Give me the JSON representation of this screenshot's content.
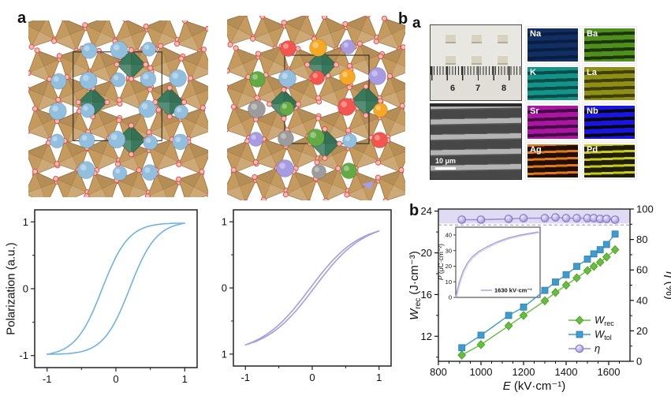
{
  "panel_labels": {
    "left": "a",
    "mid": "b",
    "right": "a",
    "chart": "b"
  },
  "structures": {
    "octahedron_fill": "#c49a5f",
    "octahedron_edge": "#8f6b3c",
    "b_site_fill": "#3a7a5c",
    "b_site_edge": "#295a43",
    "oxygen_fill": "#f5b8b4",
    "oxygen_edge": "#d84b48",
    "host_a_site": "#93bfdf",
    "host_a_edge": "#6d9cc6",
    "dopant_palette": [
      "#93bfdf",
      "#f2564e",
      "#f5a823",
      "#a89be2",
      "#9c9c9c",
      "#63aa45"
    ],
    "unit_cell_edge": "#222222"
  },
  "micrograph": {
    "ruler_numbers": [
      "6",
      "7",
      "8"
    ],
    "sem_scale_label": "10 μm"
  },
  "eds": {
    "tiles": [
      {
        "label": "Na",
        "base": "#112f62",
        "stripe": "#0a1d42",
        "style": "coarse"
      },
      {
        "label": "Ba",
        "base": "#4f8f1d",
        "stripe": "#1c3609",
        "style": "coarse"
      },
      {
        "label": "K",
        "base": "#12948a",
        "stripe": "#0a4d48",
        "style": "coarse"
      },
      {
        "label": "La",
        "base": "#8f8f16",
        "stripe": "#3f3f0a",
        "style": "coarse"
      },
      {
        "label": "Sr",
        "base": "#a816a2",
        "stripe": "#470944",
        "style": "coarse"
      },
      {
        "label": "Nb",
        "base": "#1a16e2",
        "stripe": "#050510",
        "style": "coarse"
      },
      {
        "label": "Ag",
        "base": "#e4791c",
        "stripe": "#200f02",
        "style": "fine"
      },
      {
        "label": "Pd",
        "base": "#c9c91f",
        "stripe": "#1f1f06",
        "style": "fine"
      }
    ]
  },
  "chart_data": [
    {
      "type": "line",
      "id": "pe-loop-normal",
      "description": "normal ferroelectric P-E hysteresis loop",
      "ylabel": "Polarization (a.u.)",
      "xticks": [
        -1,
        0,
        1
      ],
      "yticks": [
        1,
        0,
        -1
      ],
      "xlim": [
        -1,
        1
      ],
      "ylim": [
        -1,
        1
      ],
      "model": "hysteresis",
      "coercive_field": 0.2,
      "steepness": 2.6,
      "p_max": 0.98,
      "color": "#6fb3e3"
    },
    {
      "type": "line",
      "id": "pe-loop-slim",
      "description": "slim relaxor P-E loop",
      "xticks": [
        -1,
        0,
        1
      ],
      "yticks": [
        1,
        0,
        -1
      ],
      "xlim": [
        -1,
        1
      ],
      "ylim": [
        -1,
        1
      ],
      "model": "hysteresis",
      "coercive_field": 0.03,
      "steepness": 1.35,
      "p_max": 0.86,
      "color": "#a79ddd"
    },
    {
      "type": "line",
      "id": "energy-storage-chart",
      "x": [
        910,
        1000,
        1130,
        1200,
        1300,
        1350,
        1400,
        1450,
        1500,
        1530,
        1560,
        1590,
        1630
      ],
      "series": [
        {
          "name": "Wrec",
          "label_italic": "W",
          "label_sub": "rec",
          "marker": "diamond",
          "axis": "left",
          "color": "#68bd3e",
          "edge": "#4c9a28",
          "values": [
            10.2,
            11.2,
            13.0,
            14.0,
            15.4,
            16.2,
            16.9,
            17.6,
            18.3,
            18.7,
            19.1,
            19.6,
            20.3
          ]
        },
        {
          "name": "Wtol",
          "label_italic": "W",
          "label_sub": "tol",
          "marker": "square",
          "axis": "left",
          "color": "#3f9bcd",
          "edge": "#2e7fb0",
          "values": [
            10.9,
            12.1,
            14.0,
            14.8,
            16.4,
            17.2,
            17.9,
            18.7,
            19.4,
            19.9,
            20.3,
            20.8,
            21.8
          ]
        },
        {
          "name": "eta",
          "label_italic": "η",
          "label_sub": "",
          "marker": "circle",
          "axis": "right",
          "color": "#9a8cd4",
          "edge": "#8171c0",
          "values": [
            93,
            93,
            93.5,
            94,
            94,
            94.5,
            94,
            94,
            94,
            94,
            93.5,
            93.5,
            93
          ]
        }
      ],
      "xlabel_parts": {
        "italic": "E",
        "rest": " (kV·cm⁻¹)"
      },
      "ylabel_left_parts": {
        "italic": "W",
        "sub": "rec",
        "rest": " (J·cm⁻³)"
      },
      "ylabel_right_parts": {
        "italic": "η",
        "rest": " (%)"
      },
      "xlim": [
        800,
        1700
      ],
      "ylim_left": [
        9.6,
        24.2
      ],
      "ylim_right": [
        0,
        100
      ],
      "xticks": [
        800,
        1000,
        1200,
        1400,
        1600
      ],
      "yticks_left": [
        12,
        16,
        20,
        24
      ],
      "yticks_right": [
        0,
        20,
        40,
        60,
        80,
        100
      ],
      "band": {
        "low": 90.5,
        "high": 100,
        "color": "#d5cdef"
      },
      "dash_y": 89.5,
      "dash_color": "#b1a7d4",
      "inset": {
        "ylabel_parts": {
          "italic": "P",
          "rest": " (μC·cm⁻²)"
        },
        "yticks": [
          0,
          10,
          20,
          30,
          40
        ],
        "ylim": [
          0,
          45
        ],
        "legend": "1630 kV·cm⁻¹",
        "color": "#a79ddd",
        "x": [
          0,
          0.02,
          0.05,
          0.09,
          0.14,
          0.2,
          0.28,
          0.38,
          0.5,
          0.63,
          0.78,
          1.0
        ],
        "y": [
          0,
          5,
          11,
          17,
          22,
          26,
          29.5,
          32.5,
          35.5,
          38,
          40,
          42
        ]
      }
    }
  ]
}
